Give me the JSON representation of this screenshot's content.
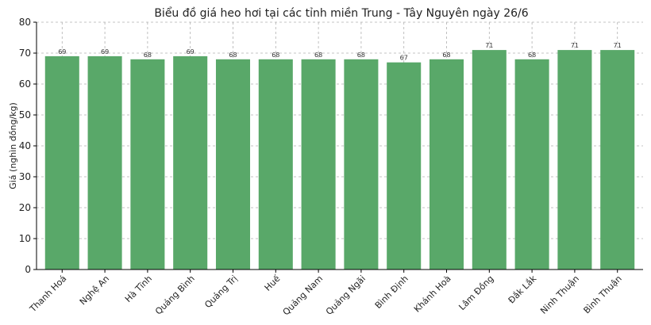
{
  "chart_data": {
    "type": "bar",
    "title": "Biểu đồ giá heo hơi tại các tỉnh miền Trung - Tây Nguyên ngày 26/6",
    "xlabel": "",
    "ylabel": "Giá (nghìn đồng/kg)",
    "ylim": [
      0,
      80
    ],
    "yticks": [
      0,
      10,
      20,
      30,
      40,
      50,
      60,
      70,
      80
    ],
    "grid": true,
    "bar_color": "#59a869",
    "categories": [
      "Thanh Hoá",
      "Nghệ An",
      "Hà Tĩnh",
      "Quảng Bình",
      "Quảng Trị",
      "Huế",
      "Quảng Nam",
      "Quảng Ngãi",
      "Bình Định",
      "Khánh Hoà",
      "Lâm Đồng",
      "Đắk Lắk",
      "Ninh Thuận",
      "Bình Thuận"
    ],
    "values": [
      69,
      69,
      68,
      69,
      68,
      68,
      68,
      68,
      67,
      68,
      71,
      68,
      71,
      71
    ]
  }
}
